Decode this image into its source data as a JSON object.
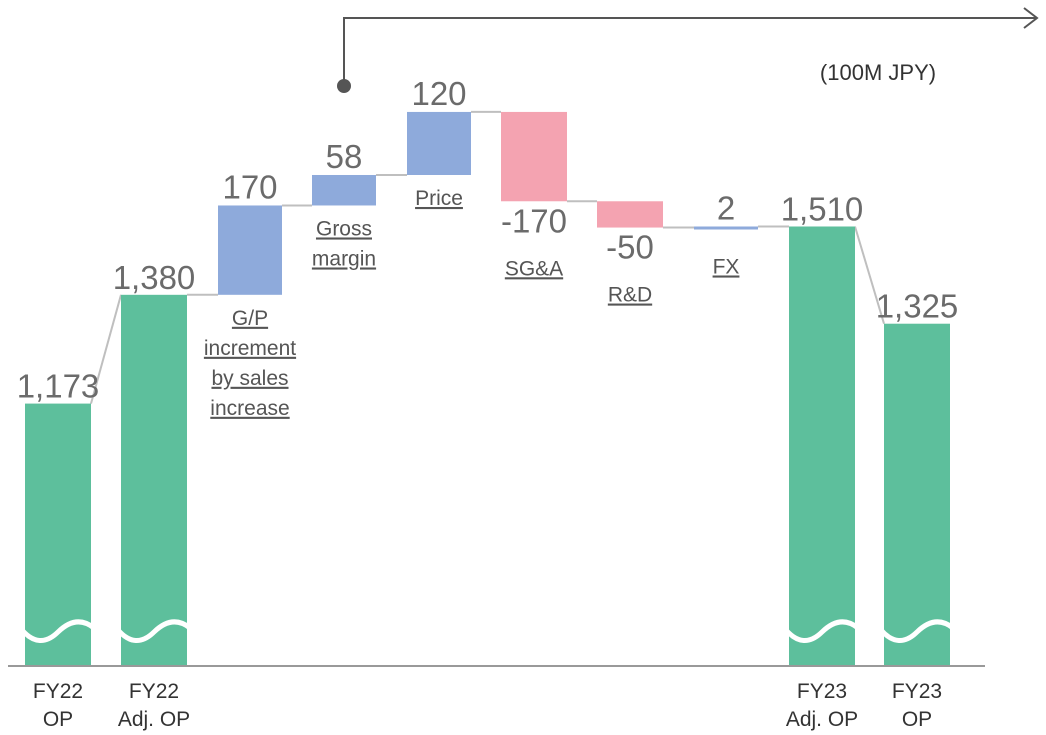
{
  "chart_data": {
    "type": "bar",
    "subtype": "waterfall",
    "unit_label": "(100M JPY)",
    "colors": {
      "total": "#5dbf9c",
      "increase": "#8eaadb",
      "decrease": "#f4a3b1",
      "connector": "#bfbfbf",
      "axis": "#999999",
      "arrow": "#555555"
    },
    "axis_break": true,
    "items": [
      {
        "kind": "total",
        "value": 1173,
        "value_label": "1,173",
        "label_lines": [
          "FY22",
          "OP"
        ]
      },
      {
        "kind": "total",
        "value": 1380,
        "value_label": "1,380",
        "label_lines": [
          "FY22",
          "Adj. OP"
        ]
      },
      {
        "kind": "increase",
        "value": 170,
        "value_label": "170",
        "label_lines": [
          "G/P",
          "increment",
          "by sales",
          "increase"
        ]
      },
      {
        "kind": "increase",
        "value": 58,
        "value_label": "58",
        "label_lines": [
          "Gross",
          "margin"
        ]
      },
      {
        "kind": "increase",
        "value": 120,
        "value_label": "120",
        "label_lines": [
          "Price"
        ]
      },
      {
        "kind": "decrease",
        "value": -170,
        "value_label": "-170",
        "label_lines": [
          "SG&A"
        ]
      },
      {
        "kind": "decrease",
        "value": -50,
        "value_label": "-50",
        "label_lines": [
          "R&D"
        ]
      },
      {
        "kind": "increase",
        "value": 2,
        "value_label": "2",
        "label_lines": [
          "FX"
        ]
      },
      {
        "kind": "total",
        "value": 1510,
        "value_label": "1,510",
        "label_lines": [
          "FY23",
          "Adj. OP"
        ]
      },
      {
        "kind": "total",
        "value": 1325,
        "value_label": "1,325",
        "label_lines": [
          "FY23",
          "OP"
        ]
      }
    ]
  }
}
